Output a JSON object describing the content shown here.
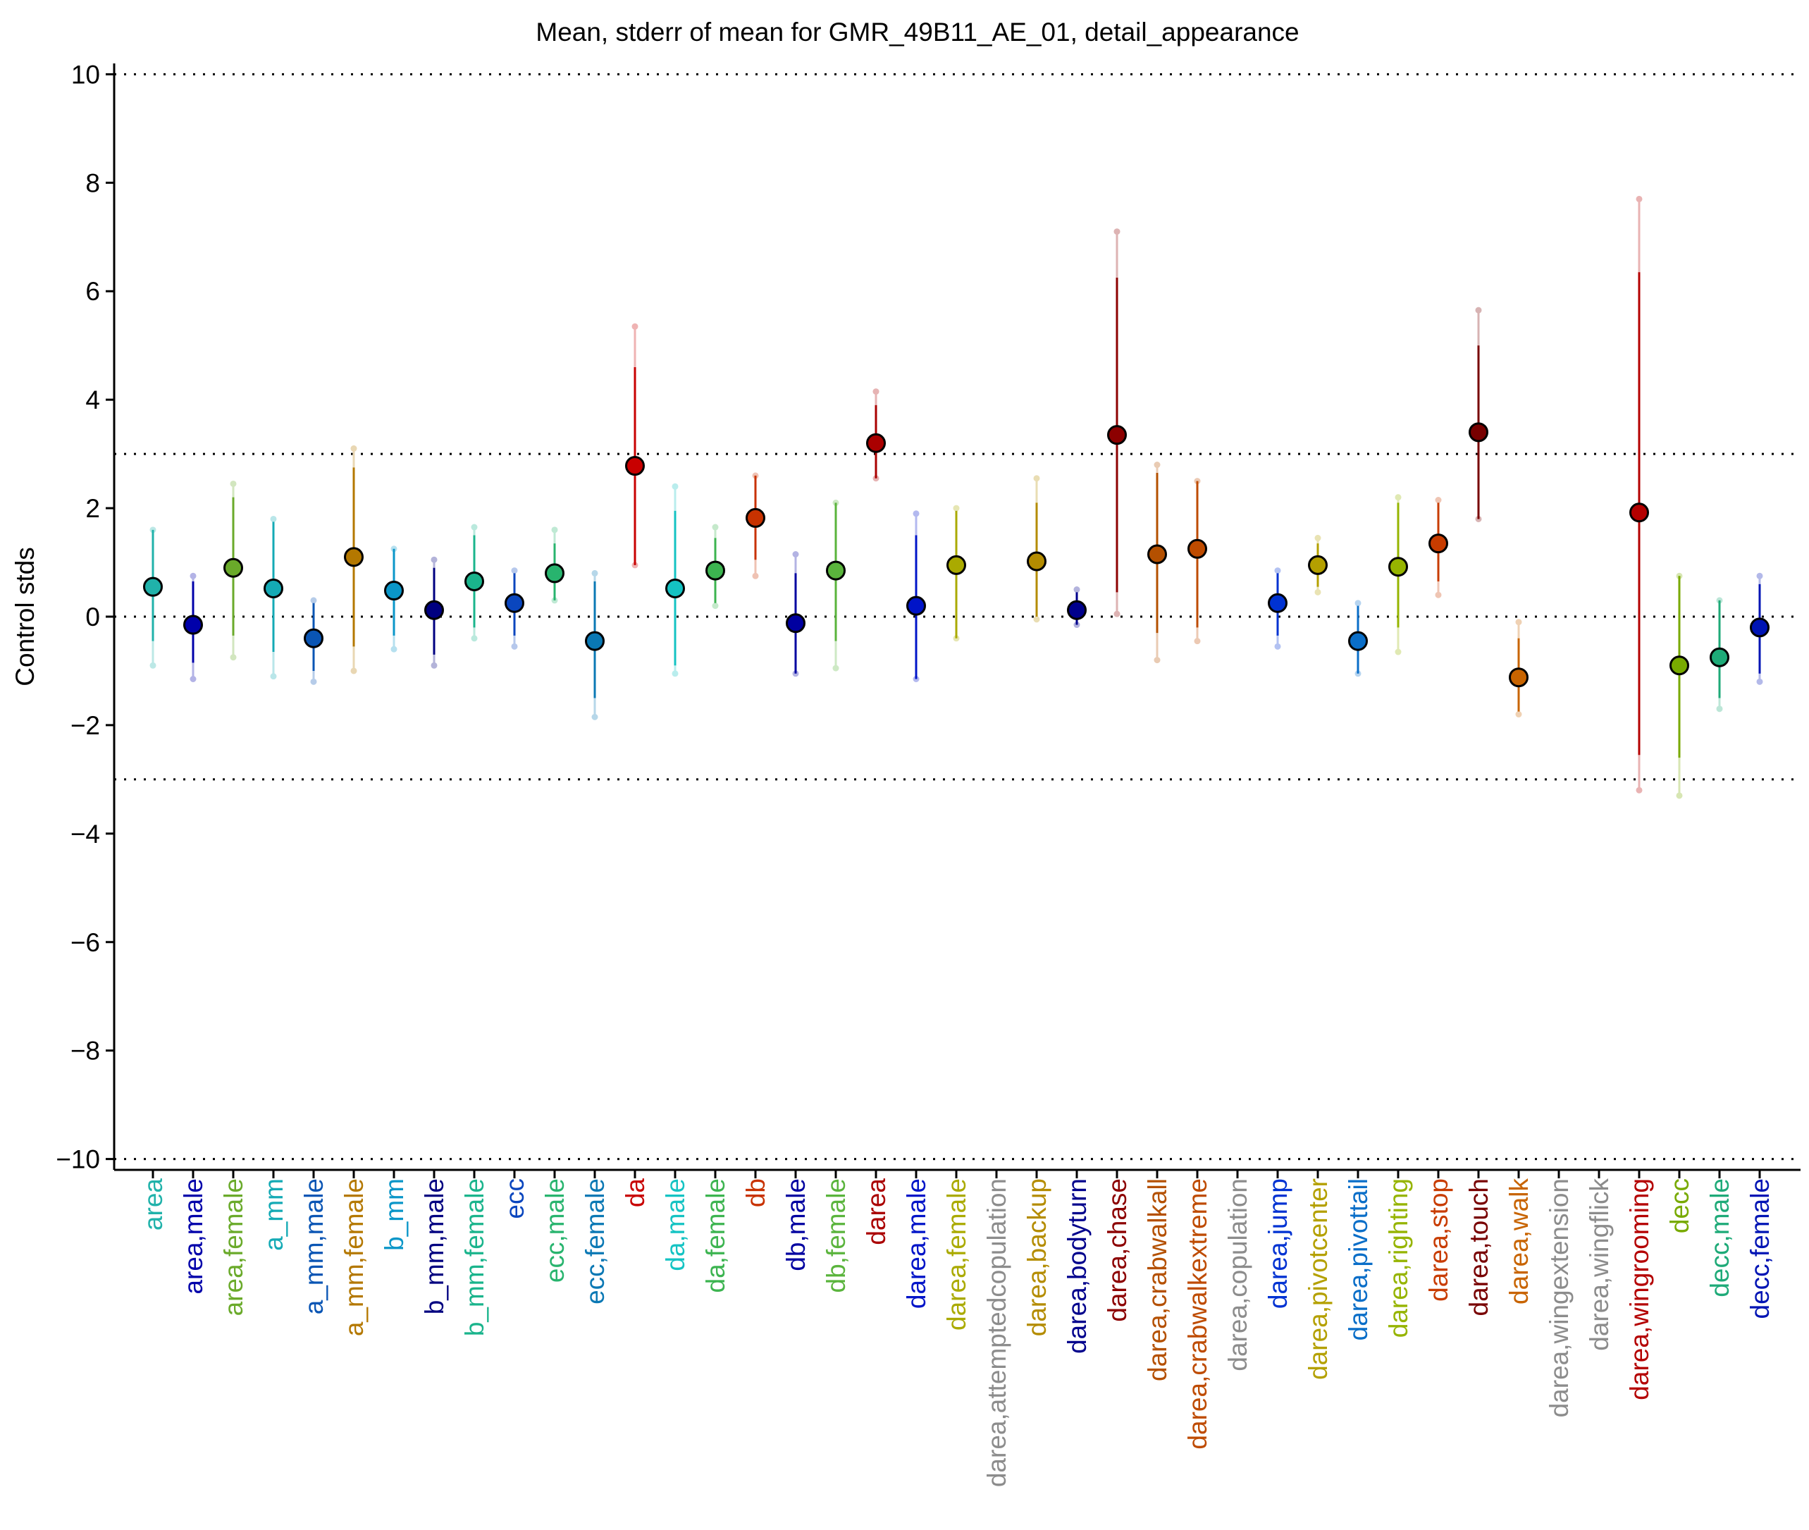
{
  "chart_data": {
    "type": "scatter",
    "title": "Mean, stderr of mean for GMR_49B11_AE_01, detail_appearance",
    "xlabel": "",
    "ylabel": "Control stds",
    "ylim": [
      -10.2,
      10.2
    ],
    "yticks": [
      10,
      8,
      6,
      4,
      2,
      0,
      -2,
      -4,
      -6,
      -8,
      -10
    ],
    "ytick_labels": [
      "10",
      "8",
      "6",
      "4",
      "2",
      "0",
      "−2",
      "−4",
      "−6",
      "−8",
      "−10"
    ],
    "reference_lines": [
      10,
      3,
      0,
      -3,
      -10
    ],
    "grid": false,
    "categories": [
      "area",
      "area,male",
      "area,female",
      "a_mm",
      "a_mm,male",
      "a_mm,female",
      "b_mm",
      "b_mm,male",
      "b_mm,female",
      "ecc",
      "ecc,male",
      "ecc,female",
      "da",
      "da,male",
      "da,female",
      "db",
      "db,male",
      "db,female",
      "darea",
      "darea,male",
      "darea,female",
      "darea,attemptedcopulation",
      "darea,backup",
      "darea,bodyturn",
      "darea,chase",
      "darea,crabwalkall",
      "darea,crabwalkextreme",
      "darea,copulation",
      "darea,jump",
      "darea,pivotcenter",
      "darea,pivottail",
      "darea,righting",
      "darea,stop",
      "darea,touch",
      "darea,walk",
      "darea,wingextension",
      "darea,wingflick",
      "darea,wingrooming",
      "decc",
      "decc,male",
      "decc,female"
    ],
    "colors": [
      "#20b2aa",
      "#0000aa",
      "#6aaa2a",
      "#14aab5",
      "#0a55b4",
      "#b47800",
      "#0a96c8",
      "#000080",
      "#1ab48c",
      "#0a46be",
      "#28b46e",
      "#0a78b4",
      "#c80000",
      "#14c3c3",
      "#3cb450",
      "#c83200",
      "#0000a0",
      "#5ab43c",
      "#aa0000",
      "#0014c8",
      "#aaaa00",
      "#8c8c8c",
      "#b48c00",
      "#00008c",
      "#8c0000",
      "#b45000",
      "#be4b00",
      "#8c8c8c",
      "#0032d2",
      "#b4a000",
      "#0a6ec8",
      "#96b400",
      "#c83c00",
      "#780000",
      "#c86400",
      "#8c8c8c",
      "#8c8c8c",
      "#b40000",
      "#78aa00",
      "#1eaa78",
      "#0014b4"
    ],
    "mean": [
      0.55,
      -0.15,
      0.9,
      0.52,
      -0.4,
      1.1,
      0.48,
      0.12,
      0.65,
      0.25,
      0.8,
      -0.45,
      2.78,
      0.52,
      0.85,
      1.82,
      -0.12,
      0.85,
      3.2,
      0.2,
      0.95,
      null,
      1.02,
      0.12,
      3.35,
      1.15,
      1.25,
      null,
      0.25,
      0.95,
      -0.45,
      0.92,
      1.35,
      3.4,
      -1.12,
      null,
      null,
      1.92,
      -0.9,
      -0.75,
      -0.2
    ],
    "stderr_lo": [
      -0.45,
      -0.85,
      -0.35,
      -0.65,
      -1.0,
      -0.55,
      -0.35,
      -0.7,
      -0.2,
      -0.35,
      0.3,
      -1.5,
      0.95,
      -0.9,
      0.25,
      1.05,
      -1.05,
      -0.45,
      2.55,
      -1.15,
      -0.4,
      null,
      0.0,
      -0.15,
      0.45,
      -0.3,
      -0.2,
      null,
      -0.35,
      0.55,
      -1.05,
      -0.2,
      0.65,
      1.8,
      -1.75,
      null,
      null,
      -2.55,
      -2.6,
      -1.5,
      -1.05
    ],
    "stderr_hi": [
      1.6,
      0.65,
      2.2,
      1.75,
      0.25,
      2.75,
      1.25,
      0.9,
      1.5,
      0.8,
      1.35,
      0.65,
      4.6,
      1.95,
      1.45,
      2.6,
      0.8,
      2.1,
      3.9,
      1.5,
      1.95,
      null,
      2.1,
      0.45,
      6.25,
      2.65,
      2.5,
      null,
      0.8,
      1.35,
      0.2,
      2.1,
      2.1,
      5.0,
      -0.4,
      null,
      null,
      6.35,
      0.75,
      0.3,
      0.6
    ],
    "range_lo": [
      -0.9,
      -1.15,
      -0.75,
      -1.1,
      -1.2,
      -1.0,
      -0.6,
      -0.9,
      -0.4,
      -0.55,
      0.3,
      -1.85,
      0.95,
      -1.05,
      0.2,
      0.75,
      -1.05,
      -0.95,
      2.55,
      -1.15,
      -0.4,
      null,
      -0.05,
      -0.15,
      0.05,
      -0.8,
      -0.45,
      null,
      -0.55,
      0.45,
      -1.05,
      -0.65,
      0.4,
      1.8,
      -1.8,
      null,
      null,
      -3.2,
      -3.3,
      -1.7,
      -1.2
    ],
    "range_hi": [
      1.6,
      0.75,
      2.45,
      1.8,
      0.3,
      3.1,
      1.25,
      1.05,
      1.65,
      0.85,
      1.6,
      0.8,
      5.35,
      2.4,
      1.65,
      2.6,
      1.15,
      2.1,
      4.15,
      1.9,
      2.0,
      null,
      2.55,
      0.5,
      7.1,
      2.8,
      2.5,
      null,
      0.85,
      1.45,
      0.25,
      2.2,
      2.15,
      5.65,
      -0.1,
      null,
      null,
      7.7,
      0.75,
      0.3,
      0.75
    ]
  }
}
